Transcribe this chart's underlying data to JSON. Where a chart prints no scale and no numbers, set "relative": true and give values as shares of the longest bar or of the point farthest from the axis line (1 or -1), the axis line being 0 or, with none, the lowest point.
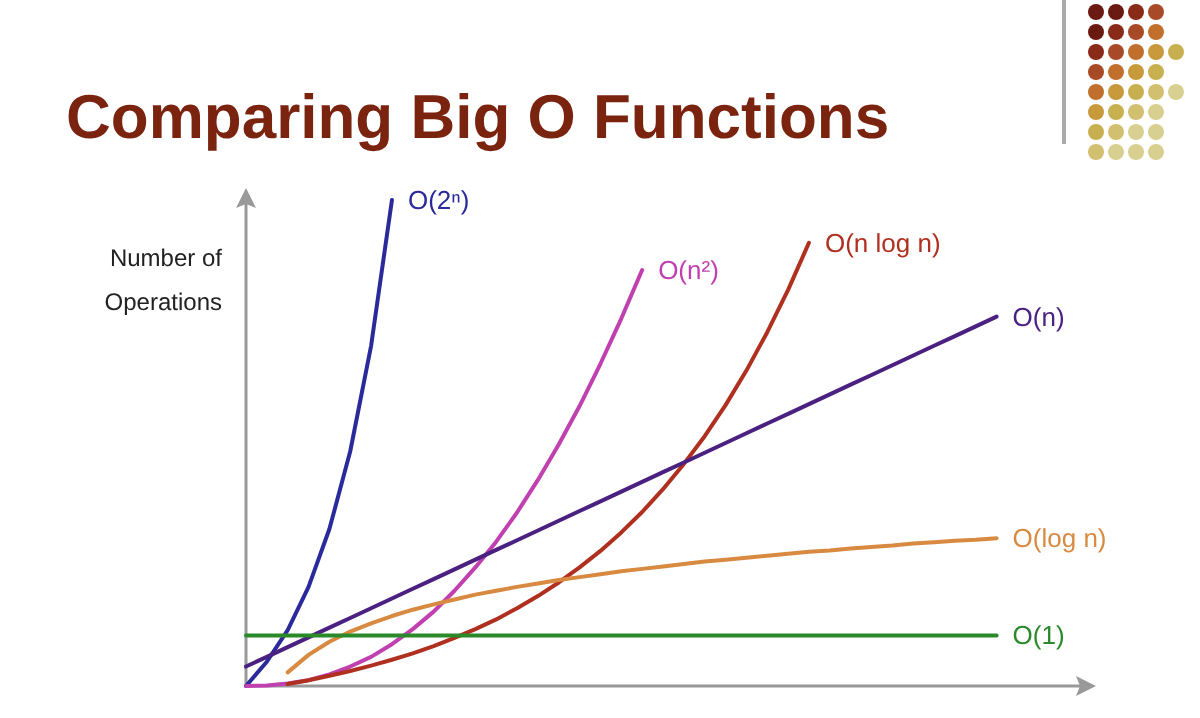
{
  "chart_data": {
    "type": "line",
    "title": "Comparing Big O Functions",
    "ylabel": "Number of\nOperations",
    "relative": true,
    "marker": "none",
    "line_style": "solid",
    "categories": [
      null,
      null,
      null,
      null,
      null,
      null,
      null,
      null,
      null,
      null,
      null,
      null,
      null,
      null,
      null,
      null,
      null,
      null,
      null,
      null,
      null,
      null,
      null,
      null,
      null,
      null,
      null,
      null,
      null,
      null,
      null,
      null,
      null,
      null,
      null,
      null,
      null,
      null,
      null,
      null,
      null
    ],
    "series": [
      {
        "name": "O(2ⁿ)",
        "color": "#2a2a9a",
        "values": [
          0,
          0.05,
          0.115,
          0.204,
          0.323,
          0.483,
          0.7,
          1,
          null,
          null,
          null,
          null,
          null,
          null,
          null,
          null,
          null,
          null,
          null,
          null,
          null,
          null,
          null,
          null,
          null,
          null,
          null,
          null,
          null,
          null,
          null,
          null,
          null,
          null,
          null,
          null,
          null,
          null,
          null,
          null,
          null
        ]
      },
      {
        "name": "O(n²)",
        "color": "#c040b0",
        "values": [
          0,
          0.001,
          0.005,
          0.012,
          0.024,
          0.04,
          0.06,
          0.086,
          0.117,
          0.153,
          0.196,
          0.244,
          0.297,
          0.357,
          0.424,
          0.497,
          0.576,
          0.663,
          0.756,
          0.856,
          null,
          null,
          null,
          null,
          null,
          null,
          null,
          null,
          null,
          null,
          null,
          null,
          null,
          null,
          null,
          null,
          null,
          null,
          null,
          null,
          null
        ]
      },
      {
        "name": "O(n log n)",
        "color": "#b03020",
        "values": [
          null,
          null,
          0.004,
          0.012,
          0.021,
          0.031,
          0.042,
          0.054,
          0.067,
          0.082,
          0.099,
          0.117,
          0.137,
          0.16,
          0.185,
          0.213,
          0.244,
          0.278,
          0.316,
          0.358,
          0.405,
          0.457,
          0.514,
          0.578,
          0.649,
          0.728,
          0.815,
          0.912,
          null,
          null,
          null,
          null,
          null,
          null,
          null,
          null,
          null,
          null,
          null,
          null,
          null
        ]
      },
      {
        "name": "O(n)",
        "color": "#4a2080",
        "values": [
          0.04,
          0.06,
          0.08,
          0.1,
          0.12,
          0.14,
          0.16,
          0.18,
          0.2,
          0.22,
          0.24,
          0.26,
          0.28,
          0.3,
          0.32,
          0.34,
          0.36,
          0.38,
          0.4,
          0.42,
          0.44,
          0.46,
          0.48,
          0.5,
          0.52,
          0.54,
          0.56,
          0.58,
          0.6,
          0.62,
          0.64,
          0.66,
          0.68,
          0.7,
          0.72,
          0.74,
          0.76,
          null,
          null,
          null,
          null
        ]
      },
      {
        "name": "O(log n)",
        "color": "#d88a40",
        "values": [
          null,
          null,
          0.028,
          0.064,
          0.091,
          0.112,
          0.129,
          0.144,
          0.157,
          0.168,
          0.178,
          0.188,
          0.196,
          0.204,
          0.211,
          0.218,
          0.224,
          0.23,
          0.236,
          0.241,
          0.246,
          0.251,
          0.256,
          0.26,
          0.264,
          0.268,
          0.272,
          0.276,
          0.279,
          0.283,
          0.286,
          0.289,
          0.293,
          0.296,
          0.299,
          0.301,
          0.304,
          null,
          null,
          null,
          null
        ]
      },
      {
        "name": "O(1)",
        "color": "#2a8a2a",
        "values": [
          0.104,
          0.104,
          0.104,
          0.104,
          0.104,
          0.104,
          0.104,
          0.104,
          0.104,
          0.104,
          0.104,
          0.104,
          0.104,
          0.104,
          0.104,
          0.104,
          0.104,
          0.104,
          0.104,
          0.104,
          0.104,
          0.104,
          0.104,
          0.104,
          0.104,
          0.104,
          0.104,
          0.104,
          0.104,
          0.104,
          0.104,
          0.104,
          0.104,
          0.104,
          0.104,
          0.104,
          0.104,
          null,
          null,
          null,
          null
        ]
      }
    ]
  }
}
